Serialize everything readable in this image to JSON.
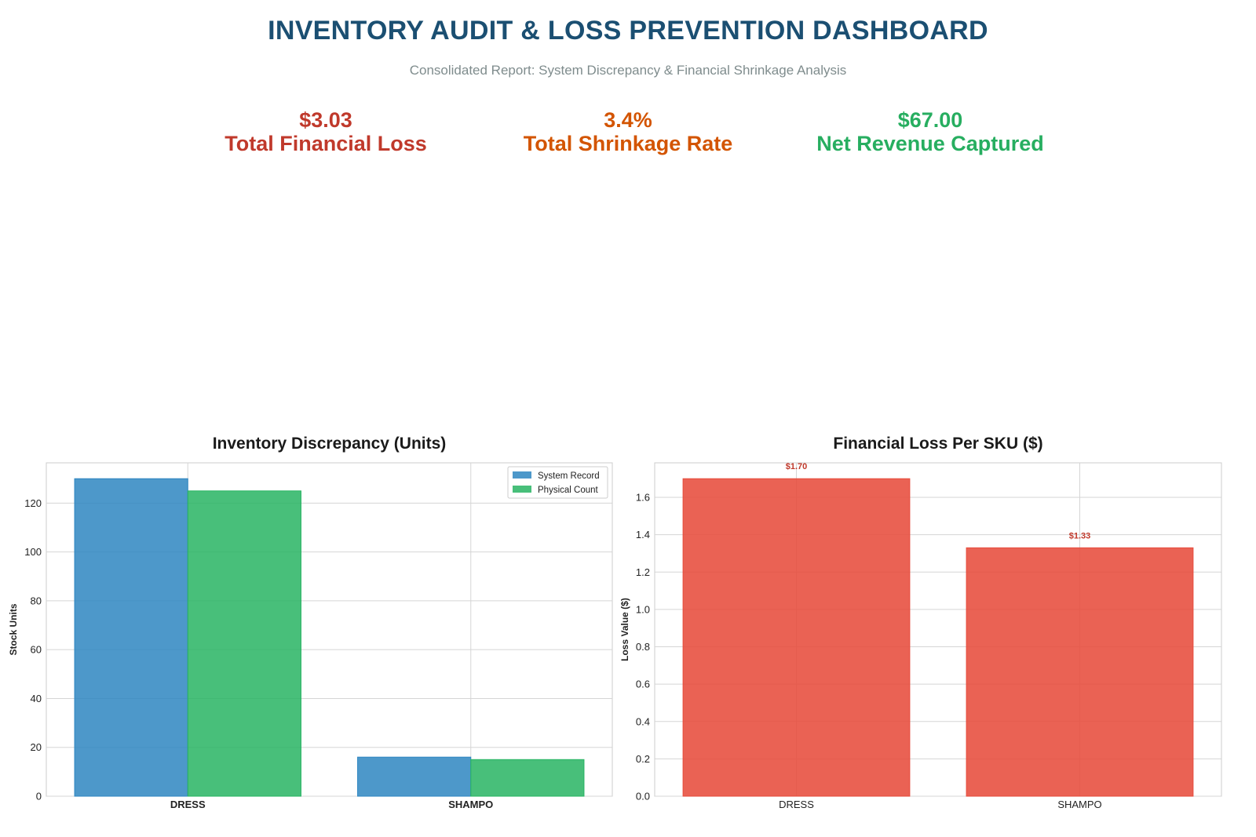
{
  "header": {
    "title": "INVENTORY AUDIT & LOSS PREVENTION DASHBOARD",
    "subtitle": "Consolidated Report: System Discrepancy & Financial Shrinkage Analysis"
  },
  "kpis": [
    {
      "value": "$3.03",
      "label": "Total Financial Loss",
      "color": "#c0392b"
    },
    {
      "value": "3.4%",
      "label": "Total Shrinkage Rate",
      "color": "#d35400"
    },
    {
      "value": "$67.00",
      "label": "Net Revenue Captured",
      "color": "#27ae60"
    }
  ],
  "colors": {
    "system_record": "#2e86c1",
    "physical_count": "#28b463",
    "loss": "#e74c3c",
    "data_label": "#c0392b"
  },
  "chart_data": [
    {
      "type": "bar",
      "title": "Inventory Discrepancy (Units)",
      "categories": [
        "DRESS",
        "SHAMPO"
      ],
      "series": [
        {
          "name": "System Record",
          "values": [
            130,
            16
          ]
        },
        {
          "name": "Physical Count",
          "values": [
            125,
            15
          ]
        }
      ],
      "xlabel": "",
      "ylabel": "Stock Units",
      "ylim": [
        0,
        136.5
      ],
      "yticks": [
        0,
        20,
        40,
        60,
        80,
        100,
        120
      ],
      "grid": true,
      "legend": "top-right"
    },
    {
      "type": "bar",
      "title": "Financial Loss Per SKU ($)",
      "categories": [
        "DRESS",
        "SHAMPO"
      ],
      "values": [
        1.7,
        1.33
      ],
      "data_labels": [
        "$1.70",
        "$1.33"
      ],
      "xlabel": "",
      "ylabel": "Loss Value ($)",
      "ylim": [
        0,
        1.785
      ],
      "yticks": [
        0.0,
        0.2,
        0.4,
        0.6,
        0.8,
        1.0,
        1.2,
        1.4,
        1.6
      ],
      "ytick_labels": [
        "0.0",
        "0.2",
        "0.4",
        "0.6",
        "0.8",
        "1.0",
        "1.2",
        "1.4",
        "1.6"
      ],
      "grid": true
    }
  ]
}
